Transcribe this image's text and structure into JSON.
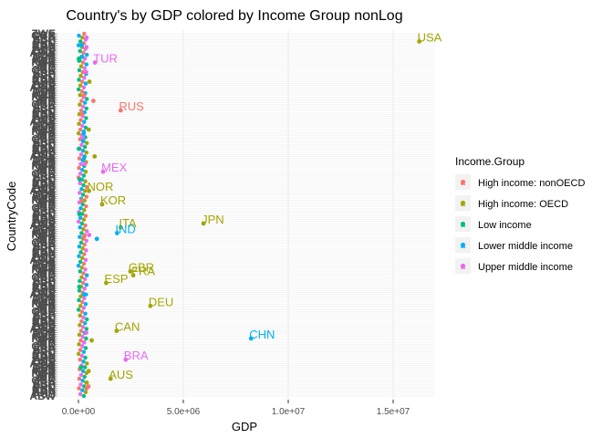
{
  "chart_data": {
    "type": "scatter",
    "title": "Country's by GDP colored by Income Group nonLog",
    "xlabel": "GDP",
    "ylabel": "CountryCode",
    "xlim": [
      -1000000,
      17000000
    ],
    "xticks": [
      0,
      5000000,
      10000000,
      15000000
    ],
    "xtick_labels": [
      "0.0e+00",
      "5.0e+06",
      "1.0e+07",
      "1.5e+07"
    ],
    "grid": true,
    "legend": {
      "title": "Income.Group",
      "position": "right",
      "entries": [
        {
          "name": "High income: nonOECD",
          "color": "#F8766D"
        },
        {
          "name": "High income: OECD",
          "color": "#A3A500"
        },
        {
          "name": "Low income",
          "color": "#00BF7D"
        },
        {
          "name": "Lower middle income",
          "color": "#00B0F6"
        },
        {
          "name": "Upper middle income",
          "color": "#E76BF3"
        }
      ]
    },
    "category_count": 190,
    "category_first": "ABW",
    "category_last": "ZWE",
    "category_labels_visible": [
      "ABW",
      "ZWE",
      "AUS",
      "BRA",
      "CAN",
      "CHN",
      "DEU",
      "ESP",
      "FRA",
      "GBR",
      "IND",
      "ITA",
      "JPN",
      "KOR",
      "MEX",
      "RUS",
      "TUR",
      "USA"
    ],
    "series": [
      {
        "name": "High income: OECD",
        "points": [
          {
            "code": "USA",
            "gdp": 16244600,
            "rank": 186
          },
          {
            "code": "JPN",
            "gdp": 5959718,
            "rank": 91
          },
          {
            "code": "DEU",
            "gdp": 3428131,
            "rank": 48
          },
          {
            "code": "FRA",
            "gdp": 2612878,
            "rank": 64
          },
          {
            "code": "GBR",
            "gdp": 2471784,
            "rank": 66
          },
          {
            "code": "ITA",
            "gdp": 2014670,
            "rank": 89
          },
          {
            "code": "CAN",
            "gdp": 1821424,
            "rank": 35
          },
          {
            "code": "AUS",
            "gdp": 1532408,
            "rank": 10
          },
          {
            "code": "ESP",
            "gdp": 1322965,
            "rank": 60
          },
          {
            "code": "KOR",
            "gdp": 1129598,
            "rank": 101
          },
          {
            "code": "NOR",
            "gdp": 499667,
            "rank": 108
          },
          {
            "code": "NLD",
            "gdp": 770555,
            "rank": 126
          },
          {
            "code": "AUT",
            "gdp": 394708,
            "rank": 8
          },
          {
            "code": "BEL",
            "gdp": 483262,
            "rank": 14
          },
          {
            "code": "CHE",
            "gdp": 631173,
            "rank": 30
          },
          {
            "code": "SWE",
            "gdp": 523806,
            "rank": 165
          },
          {
            "code": "POL",
            "gdp": 489795,
            "rank": 140
          }
        ]
      },
      {
        "name": "High income: nonOECD",
        "points": [
          {
            "code": "SAU",
            "gdp": 711050,
            "rank": 155
          },
          {
            "code": "ARE",
            "gdp": 383799,
            "rank": 5
          },
          {
            "code": "HKG",
            "gdp": 263259,
            "rank": 84
          },
          {
            "code": "SGP",
            "gdp": 274701,
            "rank": 158
          },
          {
            "code": "ARG",
            "gdp": 475502,
            "rank": 6
          },
          {
            "code": "QAT",
            "gdp": 171476,
            "rank": 148
          },
          {
            "code": "KWT",
            "gdp": 160913,
            "rank": 103
          },
          {
            "code": "RUS",
            "gdp": 2014775,
            "rank": 150
          }
        ]
      },
      {
        "name": "Upper middle income",
        "points": [
          {
            "code": "BRA",
            "gdp": 2252664,
            "rank": 20
          },
          {
            "code": "MEX",
            "gdp": 1178126,
            "rank": 118
          },
          {
            "code": "TUR",
            "gdp": 789257,
            "rank": 175
          },
          {
            "code": "IRN",
            "gdp": 514060,
            "rank": 85
          },
          {
            "code": "ZAF",
            "gdp": 384313,
            "rank": 188
          },
          {
            "code": "COL",
            "gdp": 369606,
            "rank": 34
          },
          {
            "code": "MYS",
            "gdp": 305033,
            "rank": 122
          },
          {
            "code": "THA",
            "gdp": 365966,
            "rank": 170
          },
          {
            "code": "VEN",
            "gdp": 381286,
            "rank": 183
          },
          {
            "code": "PER",
            "gdp": 203790,
            "rank": 136
          },
          {
            "code": "CHL",
            "gdp": 269869,
            "rank": 29
          }
        ]
      },
      {
        "name": "Lower middle income",
        "points": [
          {
            "code": "CHN",
            "gdp": 8227103,
            "rank": 31
          },
          {
            "code": "IND",
            "gdp": 1841710,
            "rank": 86
          },
          {
            "code": "IDN",
            "gdp": 878043,
            "rank": 83
          },
          {
            "code": "NGA",
            "gdp": 262597,
            "rank": 125
          },
          {
            "code": "EGY",
            "gdp": 262832,
            "rank": 54
          },
          {
            "code": "PHL",
            "gdp": 250182,
            "rank": 138
          },
          {
            "code": "PAK",
            "gdp": 225143,
            "rank": 134
          },
          {
            "code": "UKR",
            "gdp": 176309,
            "rank": 178
          },
          {
            "code": "VNM",
            "gdp": 155820,
            "rank": 184
          }
        ]
      },
      {
        "name": "Low income",
        "points": [
          {
            "code": "BGD",
            "gdp": 116355,
            "rank": 16
          },
          {
            "code": "ETH",
            "gdp": 41605,
            "rank": 58
          },
          {
            "code": "KEN",
            "gdp": 40697,
            "rank": 96
          },
          {
            "code": "TZA",
            "gdp": 28242,
            "rank": 176
          },
          {
            "code": "MMR",
            "gdp": 59423,
            "rank": 114
          },
          {
            "code": "NPL",
            "gdp": 18963,
            "rank": 130
          },
          {
            "code": "UGA",
            "gdp": 19881,
            "rank": 177
          }
        ]
      }
    ],
    "labeled_points": [
      "USA",
      "RUS",
      "MEX",
      "NOR",
      "ITA",
      "JPN",
      "IND",
      "GBR",
      "FRA",
      "ESP",
      "DEU",
      "CHN",
      "CAN",
      "BRA",
      "AUS",
      "KOR",
      "TUR"
    ]
  }
}
